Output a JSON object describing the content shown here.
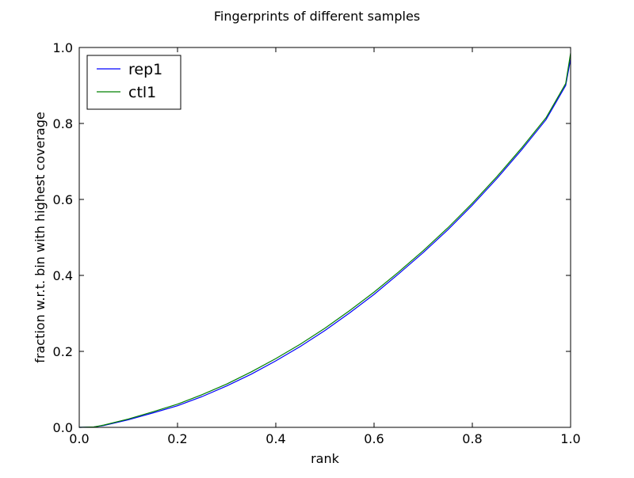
{
  "chart_data": {
    "type": "line",
    "title": "Fingerprints of different samples",
    "xlabel": "rank",
    "ylabel": "fraction w.r.t. bin with highest coverage",
    "xlim": [
      0.0,
      1.0
    ],
    "ylim": [
      0.0,
      1.0
    ],
    "x_ticks": [
      0.0,
      0.2,
      0.4,
      0.6,
      0.8,
      1.0
    ],
    "y_ticks": [
      0.0,
      0.2,
      0.4,
      0.6,
      0.8,
      1.0
    ],
    "x_tick_labels": [
      "0.0",
      "0.2",
      "0.4",
      "0.6",
      "0.8",
      "1.0"
    ],
    "y_tick_labels": [
      "0.0",
      "0.2",
      "0.4",
      "0.6",
      "0.8",
      "1.0"
    ],
    "grid": false,
    "legend_position": "top-left",
    "series": [
      {
        "name": "rep1",
        "color": "#0000ff",
        "x": [
          0.0,
          0.03,
          0.05,
          0.1,
          0.15,
          0.2,
          0.25,
          0.3,
          0.35,
          0.4,
          0.45,
          0.5,
          0.55,
          0.6,
          0.65,
          0.7,
          0.75,
          0.8,
          0.85,
          0.9,
          0.95,
          0.99,
          1.0
        ],
        "y": [
          0.0,
          0.001,
          0.005,
          0.02,
          0.038,
          0.057,
          0.081,
          0.109,
          0.14,
          0.175,
          0.213,
          0.255,
          0.301,
          0.35,
          0.404,
          0.46,
          0.52,
          0.585,
          0.655,
          0.73,
          0.81,
          0.9,
          0.97
        ]
      },
      {
        "name": "ctl1",
        "color": "#008000",
        "x": [
          0.0,
          0.03,
          0.05,
          0.1,
          0.15,
          0.2,
          0.25,
          0.3,
          0.35,
          0.4,
          0.45,
          0.5,
          0.55,
          0.6,
          0.65,
          0.7,
          0.75,
          0.8,
          0.85,
          0.9,
          0.95,
          0.99,
          1.0
        ],
        "y": [
          0.0,
          0.001,
          0.006,
          0.022,
          0.041,
          0.061,
          0.086,
          0.114,
          0.146,
          0.181,
          0.219,
          0.261,
          0.307,
          0.356,
          0.409,
          0.465,
          0.525,
          0.59,
          0.66,
          0.735,
          0.815,
          0.905,
          0.985
        ]
      }
    ]
  }
}
